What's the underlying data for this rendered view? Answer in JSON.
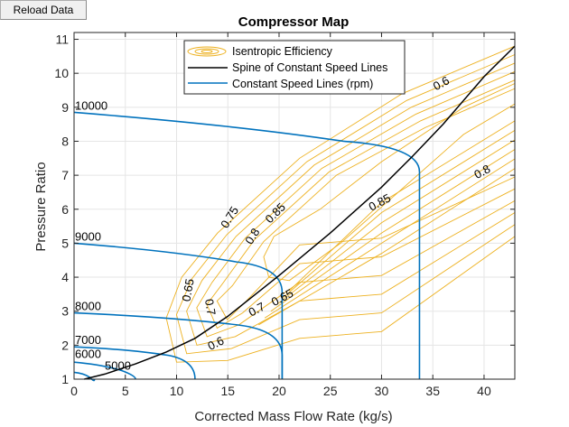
{
  "toolbar": {
    "reload_label": "Reload Data"
  },
  "chart_data": {
    "type": "line",
    "title": "Compressor Map",
    "xlabel": "Corrected Mass Flow Rate (kg/s)",
    "ylabel": "Pressure Ratio",
    "xlim": [
      0,
      43
    ],
    "ylim": [
      1,
      11.2
    ],
    "xticks": [
      0,
      5,
      10,
      15,
      20,
      25,
      30,
      35,
      40
    ],
    "yticks": [
      1,
      2,
      3,
      4,
      5,
      6,
      7,
      8,
      9,
      10,
      11
    ],
    "grid": true,
    "legend": {
      "placement": "top-center",
      "entries": [
        {
          "label": "Isentropic Efficiency",
          "color": "#EDB120",
          "style": "contour"
        },
        {
          "label": "Spine of Constant Speed Lines",
          "color": "#000000",
          "style": "line"
        },
        {
          "label": "Constant Speed Lines (rpm)",
          "color": "#0072BD",
          "style": "line"
        }
      ]
    },
    "colors": {
      "speed": "#0072BD",
      "spine": "#000000",
      "efficiency": "#EDB120",
      "grid": "#e5e5e5"
    },
    "speed_lines": [
      {
        "rpm": "5000",
        "label": "5000",
        "max_flow": 2.0,
        "pr_at_zero": 1.2,
        "pr_at_knee": 1.05
      },
      {
        "rpm": "6000",
        "label": "6000",
        "max_flow": 6.0,
        "pr_at_zero": 1.5,
        "pr_at_knee": 1.25
      },
      {
        "rpm": "7000",
        "label": "7000",
        "max_flow": 11.8,
        "pr_at_zero": 1.95,
        "pr_at_knee": 1.7
      },
      {
        "rpm": "8000",
        "label": "8000",
        "max_flow": 20.3,
        "pr_at_zero": 2.95,
        "pr_at_knee": 2.6
      },
      {
        "rpm": "9000",
        "label": "9000",
        "max_flow": 20.3,
        "pr_at_zero": 5.0,
        "pr_at_knee": 4.45
      },
      {
        "rpm": "10000",
        "label": "10000",
        "max_flow": 33.7,
        "pr_at_zero": 8.85,
        "pr_at_knee": 8.0
      }
    ],
    "spine": {
      "x": [
        1,
        3,
        6,
        9,
        11.8,
        15,
        20,
        25,
        30,
        33,
        36,
        40,
        43
      ],
      "y": [
        1.0,
        1.15,
        1.45,
        1.8,
        2.2,
        2.85,
        4.05,
        5.3,
        6.65,
        7.55,
        8.5,
        9.9,
        10.8
      ]
    },
    "efficiency_levels": [
      "0.6",
      "0.65",
      "0.7",
      "0.75",
      "0.8",
      "0.85"
    ],
    "efficiency_labels": [
      {
        "text": "0.75",
        "x": 15.5,
        "y": 5.7,
        "angle": -58
      },
      {
        "text": "0.8",
        "x": 16.3,
        "y": 5.5,
        "angle": -58
      },
      {
        "text": "0.85",
        "x": 18.8,
        "y": 5.6,
        "angle": -45
      },
      {
        "text": "0.65",
        "x": 11.5,
        "y": 3.6,
        "angle": -80
      },
      {
        "text": "0.7",
        "x": 12.9,
        "y": 3.1,
        "angle": 80
      },
      {
        "text": "0.7",
        "x": 18.0,
        "y": 2.95,
        "angle": -28
      },
      {
        "text": "0.65",
        "x": 20.5,
        "y": 3.3,
        "angle": -28
      },
      {
        "text": "0.6",
        "x": 14.0,
        "y": 1.95,
        "angle": -26
      },
      {
        "text": "0.85",
        "x": 30.0,
        "y": 6.1,
        "angle": -28
      },
      {
        "text": "0.6",
        "x": 36.0,
        "y": 9.6,
        "angle": -28
      },
      {
        "text": "0.8",
        "x": 40.0,
        "y": 7.0,
        "angle": -28
      }
    ]
  }
}
